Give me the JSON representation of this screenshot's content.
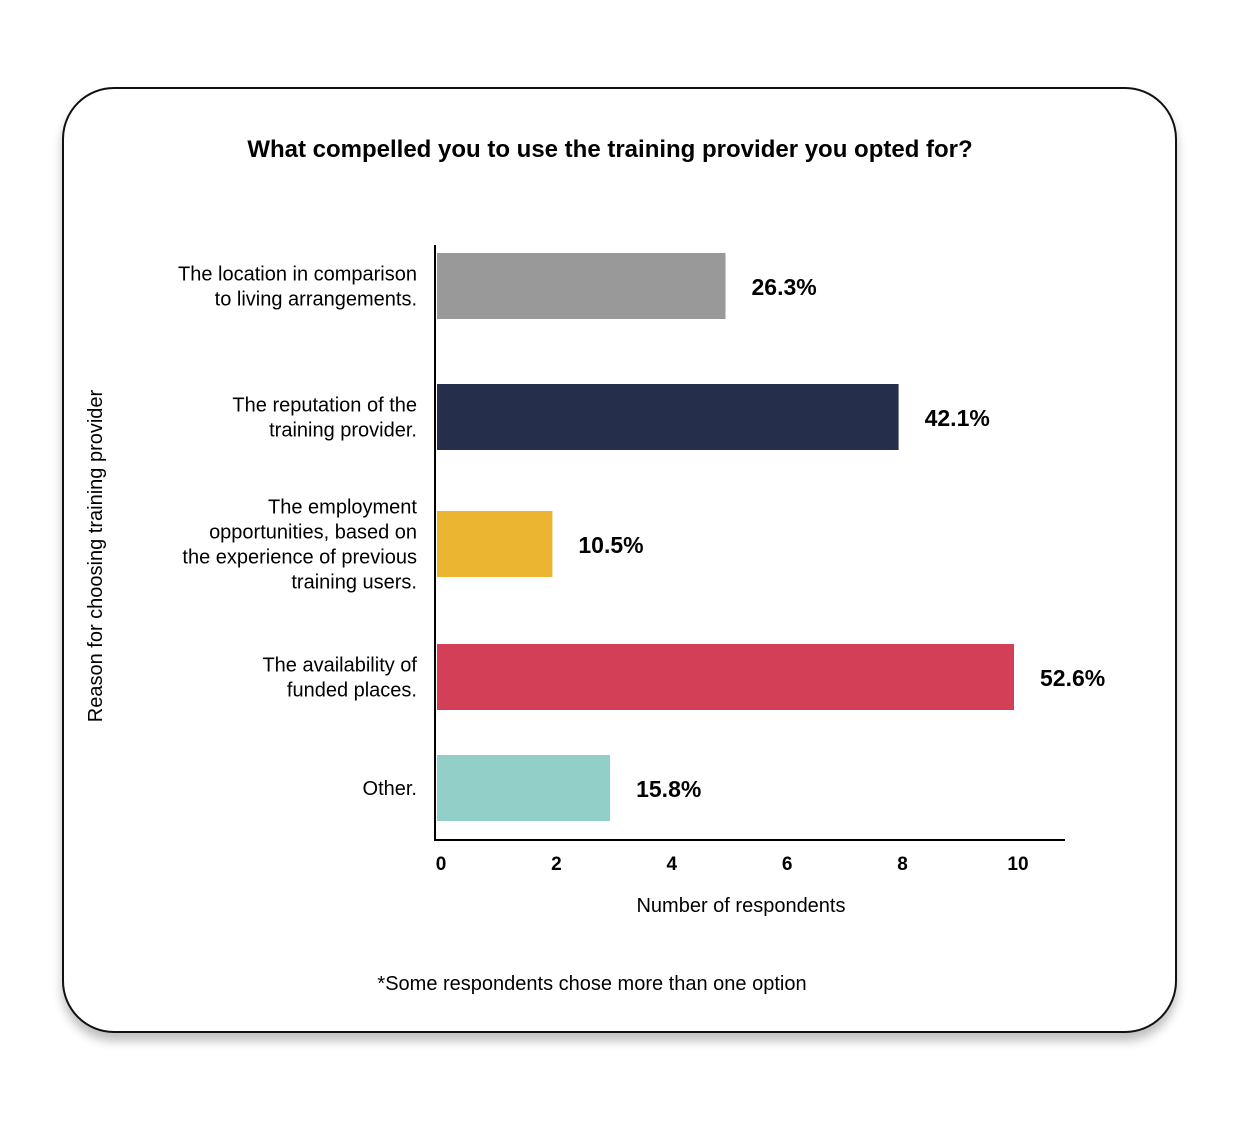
{
  "chart_data": {
    "type": "bar",
    "orientation": "horizontal",
    "title": "What compelled you to use the training provider you opted for?",
    "xlabel": "Number of respondents",
    "ylabel": "Reason for choosing training provider",
    "footnote": "*Some respondents chose more than one option",
    "categories": [
      [
        "The location in comparison",
        "to living arrangements."
      ],
      [
        "The reputation of the",
        "training provider."
      ],
      [
        "The employment",
        "opportunities, based on",
        "the experience of previous",
        "training users."
      ],
      [
        "The availability of",
        "funded places."
      ],
      [
        "Other."
      ]
    ],
    "values": [
      5,
      8,
      2,
      10,
      3
    ],
    "data_labels": [
      "26.3%",
      "42.1%",
      "10.5%",
      "52.6%",
      "15.8%"
    ],
    "colors": [
      "#999999",
      "#252f4b",
      "#ecb531",
      "#d33f56",
      "#92cfc8"
    ],
    "xticks": [
      "0",
      "2",
      "4",
      "6",
      "8",
      "10"
    ],
    "xlim": [
      0,
      10.9
    ],
    "grid": false,
    "legend": "none"
  }
}
